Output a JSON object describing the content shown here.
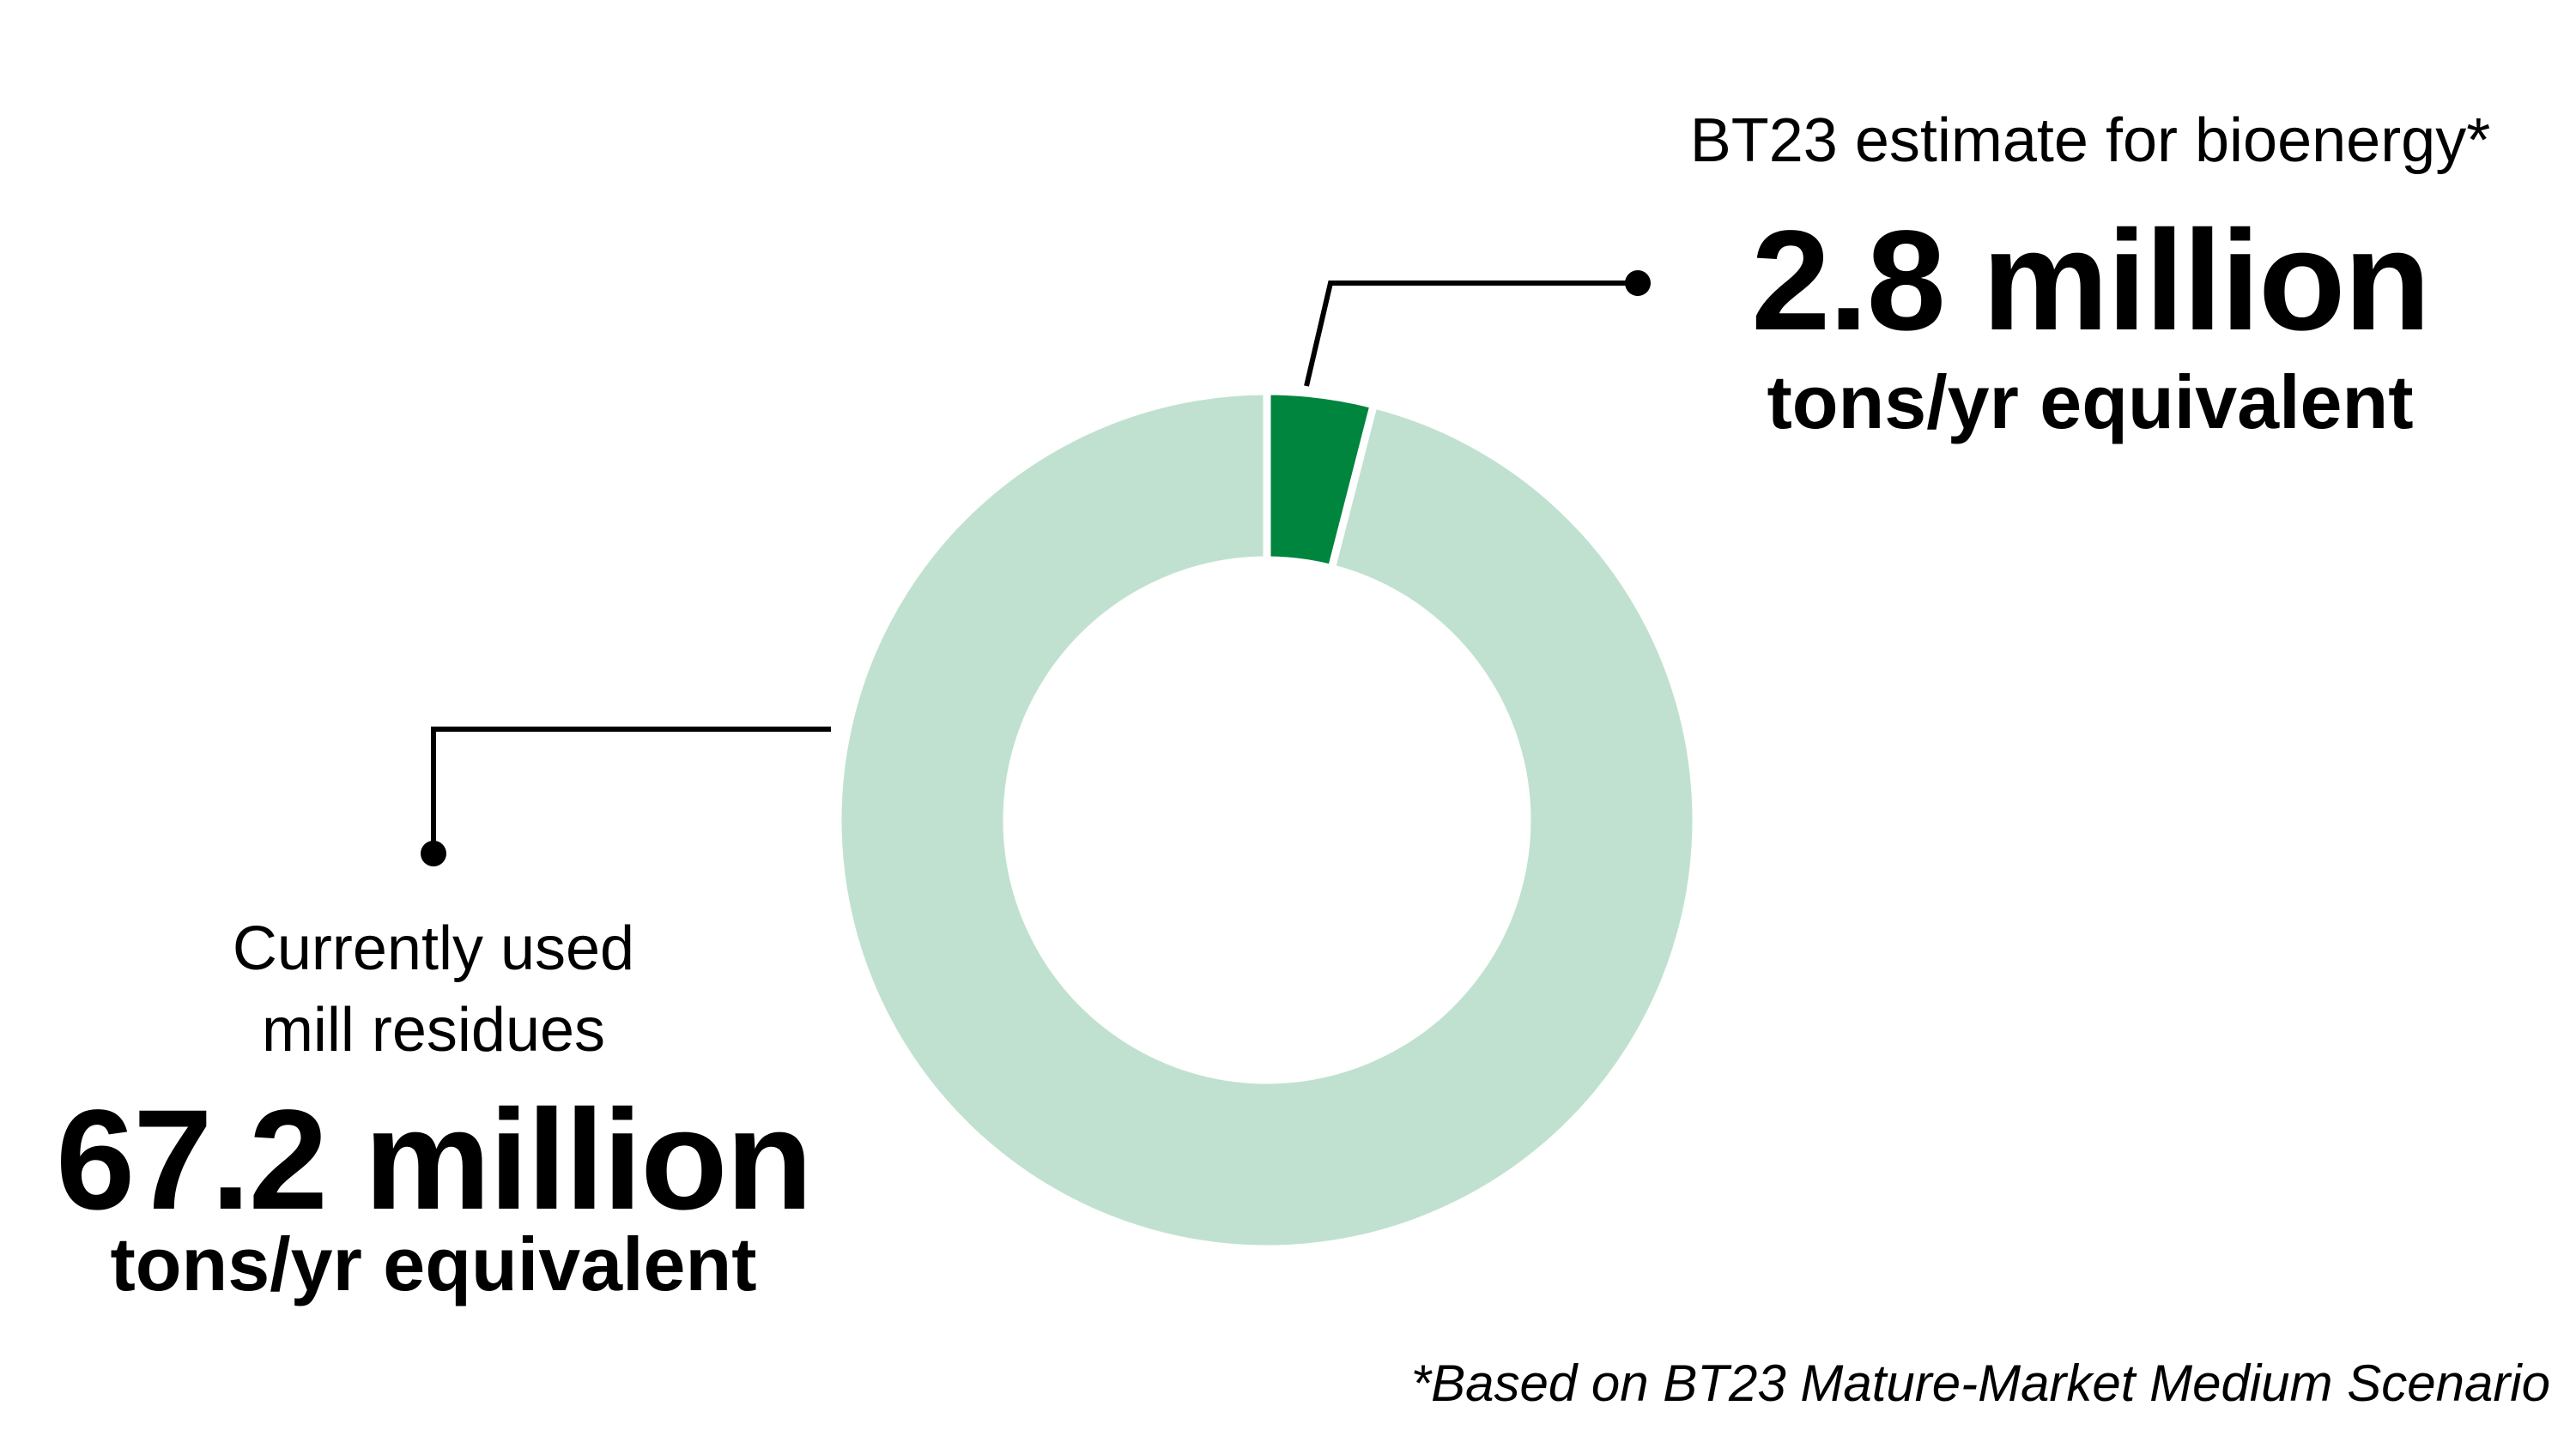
{
  "chart_data": {
    "type": "pie",
    "variant": "donut",
    "slices": [
      {
        "key": "bioenergy",
        "caption": "BT23 estimate for bioenergy*",
        "value": 2.8,
        "value_label": "2.8 million",
        "unit": "tons/yr equivalent",
        "color": "#00853f"
      },
      {
        "key": "mill",
        "caption_lines": [
          "Currently used",
          "mill residues"
        ],
        "value": 67.2,
        "value_label": "67.2 million",
        "unit": "tons/yr equivalent",
        "color": "#c1e1d0"
      }
    ],
    "footnote": "*Based on BT23 Mature-Market Medium Scenario"
  }
}
